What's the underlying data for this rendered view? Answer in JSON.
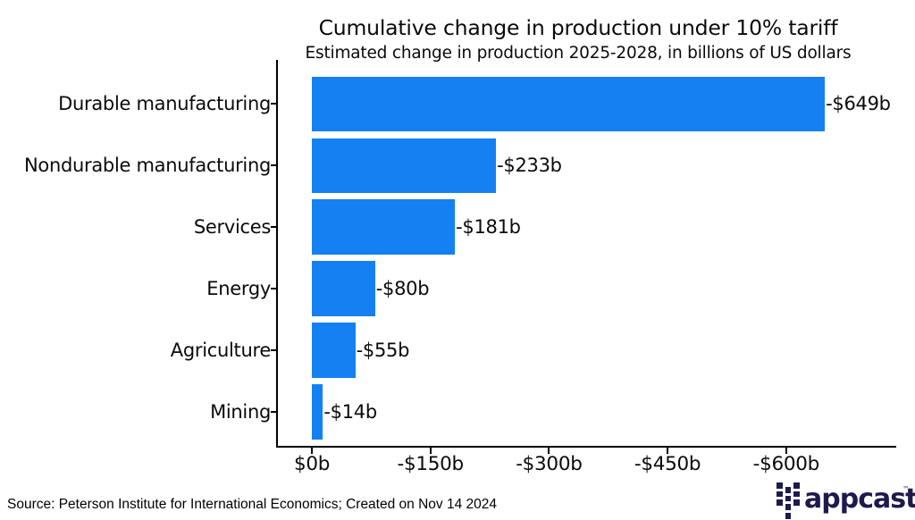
{
  "chart_data": {
    "type": "bar",
    "orientation": "horizontal",
    "title": "Cumulative change in production under 10% tariff",
    "subtitle": "Estimated change in production 2025-2028, in billions of US dollars",
    "xlabel": "",
    "ylabel": "",
    "unit": "billions of US dollars",
    "categories": [
      "Durable manufacturing",
      "Nondurable manufacturing",
      "Services",
      "Energy",
      "Agriculture",
      "Mining"
    ],
    "values": [
      -649,
      -233,
      -181,
      -80,
      -55,
      -14
    ],
    "bar_labels": [
      "-$649b",
      "-$233b",
      "-$181b",
      "-$80b",
      "-$55b",
      "-$14b"
    ],
    "x_ticks": [
      {
        "label": "$0b",
        "value": 0
      },
      {
        "label": "-$150b",
        "value": -150
      },
      {
        "label": "-$300b",
        "value": -300
      },
      {
        "label": "-$450b",
        "value": -450
      },
      {
        "label": "-$600b",
        "value": -600
      }
    ],
    "xlim": [
      0,
      -740
    ],
    "grid": false,
    "legend": false,
    "bar_color": "#1580f2",
    "axis_color": "#000000"
  },
  "footer": {
    "source": "Source: Peterson Institute for International Economics; Created on Nov 14 2024",
    "logo_text": "appcast",
    "logo_tm": "™"
  }
}
